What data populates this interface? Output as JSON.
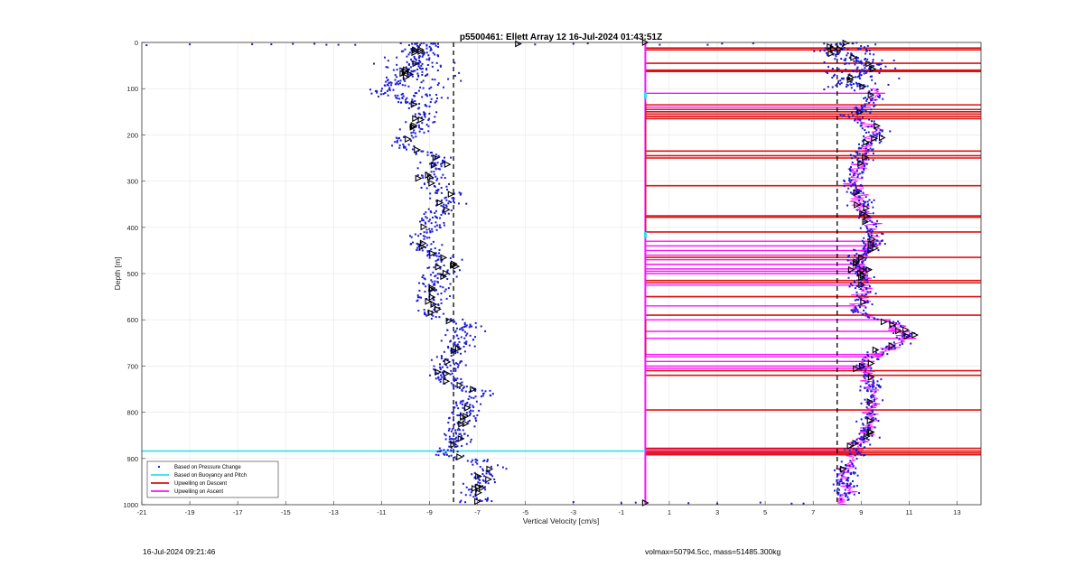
{
  "chart_data": {
    "type": "scatter",
    "title": "p5500461: Ellett Array 12 16-Jul-2024 01:43:51Z",
    "xlabel": "Vertical Velocity [cm/s]",
    "ylabel": "Depth [m]",
    "xlim": [
      -21,
      14
    ],
    "ylim": [
      0,
      1000
    ],
    "y_reversed": true,
    "grid": true,
    "x_ticks": [
      "-21",
      "-19",
      "-17",
      "-15",
      "-13",
      "-11",
      "-9",
      "-7",
      "-5",
      "-3",
      "-1",
      "1",
      "3",
      "5",
      "7",
      "9",
      "11",
      "13"
    ],
    "x_tick_values": [
      -21,
      -19,
      -17,
      -15,
      -13,
      -11,
      -9,
      -7,
      -5,
      -3,
      -1,
      1,
      3,
      5,
      7,
      9,
      11,
      13
    ],
    "y_ticks": [
      "0",
      "100",
      "200",
      "300",
      "400",
      "500",
      "600",
      "700",
      "800",
      "900",
      "1000"
    ],
    "y_tick_values": [
      0,
      100,
      200,
      300,
      400,
      500,
      600,
      700,
      800,
      900,
      1000
    ],
    "legend_position": "bottom-left",
    "legend": [
      {
        "label": "Based on Pressure Change",
        "color": "#1a1ad6",
        "style": "dot"
      },
      {
        "label": "Based on Buoyancy and Pitch",
        "color": "#29e0f0",
        "style": "line"
      },
      {
        "label": "Upwelling on Descent",
        "color": "#e01010",
        "style": "line"
      },
      {
        "label": "Upwelling on Ascent",
        "color": "#ff10ff",
        "style": "line"
      }
    ],
    "reference_lines": [
      -8,
      8
    ],
    "descent_profile": [
      {
        "depth": 0,
        "v": -9.4
      },
      {
        "depth": 40,
        "v": -9.5
      },
      {
        "depth": 60,
        "v": -9.8
      },
      {
        "depth": 80,
        "v": -10.4
      },
      {
        "depth": 110,
        "v": -10.9
      },
      {
        "depth": 140,
        "v": -9.2
      },
      {
        "depth": 180,
        "v": -9.5
      },
      {
        "depth": 220,
        "v": -10.2
      },
      {
        "depth": 250,
        "v": -8.5
      },
      {
        "depth": 280,
        "v": -9.0
      },
      {
        "depth": 300,
        "v": -9.3
      },
      {
        "depth": 330,
        "v": -8.0
      },
      {
        "depth": 370,
        "v": -8.6
      },
      {
        "depth": 400,
        "v": -9.0
      },
      {
        "depth": 440,
        "v": -9.3
      },
      {
        "depth": 480,
        "v": -8.2
      },
      {
        "depth": 520,
        "v": -8.8
      },
      {
        "depth": 560,
        "v": -8.9
      },
      {
        "depth": 590,
        "v": -9.0
      },
      {
        "depth": 610,
        "v": -7.3
      },
      {
        "depth": 650,
        "v": -7.8
      },
      {
        "depth": 690,
        "v": -8.2
      },
      {
        "depth": 720,
        "v": -8.7
      },
      {
        "depth": 760,
        "v": -6.9
      },
      {
        "depth": 790,
        "v": -7.5
      },
      {
        "depth": 830,
        "v": -7.8
      },
      {
        "depth": 870,
        "v": -7.9
      },
      {
        "depth": 890,
        "v": -8.6
      },
      {
        "depth": 910,
        "v": -6.3
      },
      {
        "depth": 940,
        "v": -6.8
      },
      {
        "depth": 975,
        "v": -7.2
      },
      {
        "depth": 995,
        "v": -7.0
      }
    ],
    "ascent_profile": [
      {
        "depth": 0,
        "v": 8.4
      },
      {
        "depth": 20,
        "v": 7.6
      },
      {
        "depth": 50,
        "v": 9.5
      },
      {
        "depth": 80,
        "v": 8.6
      },
      {
        "depth": 110,
        "v": 9.7
      },
      {
        "depth": 140,
        "v": 9.1
      },
      {
        "depth": 160,
        "v": 8.6
      },
      {
        "depth": 190,
        "v": 9.7
      },
      {
        "depth": 230,
        "v": 9.2
      },
      {
        "depth": 270,
        "v": 8.9
      },
      {
        "depth": 300,
        "v": 8.6
      },
      {
        "depth": 330,
        "v": 8.9
      },
      {
        "depth": 370,
        "v": 9.2
      },
      {
        "depth": 400,
        "v": 9.4
      },
      {
        "depth": 430,
        "v": 9.6
      },
      {
        "depth": 470,
        "v": 8.8
      },
      {
        "depth": 500,
        "v": 9.0
      },
      {
        "depth": 540,
        "v": 9.1
      },
      {
        "depth": 580,
        "v": 8.8
      },
      {
        "depth": 610,
        "v": 10.5
      },
      {
        "depth": 640,
        "v": 11.0
      },
      {
        "depth": 670,
        "v": 9.8
      },
      {
        "depth": 700,
        "v": 9.0
      },
      {
        "depth": 730,
        "v": 9.4
      },
      {
        "depth": 770,
        "v": 9.5
      },
      {
        "depth": 810,
        "v": 9.4
      },
      {
        "depth": 850,
        "v": 9.2
      },
      {
        "depth": 880,
        "v": 8.8
      },
      {
        "depth": 910,
        "v": 8.5
      },
      {
        "depth": 940,
        "v": 8.3
      },
      {
        "depth": 970,
        "v": 8.4
      },
      {
        "depth": 990,
        "v": 8.2
      }
    ],
    "surface_outliers": [
      -20.8,
      -19.0,
      -16.4,
      -15.6,
      -14.7,
      -13.8,
      -13.3,
      -12.8,
      -12.1,
      -5.3,
      -4.6,
      -3.0,
      -2.4,
      0.6,
      2.6,
      3.2,
      4.5
    ],
    "bottom_outliers": [
      -3.0,
      -1.0,
      -0.4,
      1.8,
      3.0,
      4.8,
      6.1,
      6.6
    ],
    "buoyancy_line": {
      "x": 0,
      "horizontal_at_depth": 884
    },
    "upwelling_descent_depths": [
      12,
      16,
      45,
      60,
      63,
      135,
      145,
      150,
      155,
      160,
      165,
      235,
      245,
      250,
      310,
      375,
      378,
      410,
      465,
      515,
      520,
      550,
      590,
      710,
      720,
      795,
      878,
      884,
      888,
      892
    ],
    "upwelling_ascent_depths": [
      110,
      140,
      150,
      160,
      430,
      440,
      450,
      460,
      470,
      480,
      490,
      495,
      500,
      520,
      525,
      550,
      570,
      600,
      625,
      640,
      675,
      680,
      690,
      700,
      705,
      880,
      885,
      890
    ]
  },
  "footer": {
    "left": "16-Jul-2024 09:21:46",
    "right": "volmax=50794.5cc, mass=51485.300kg"
  }
}
